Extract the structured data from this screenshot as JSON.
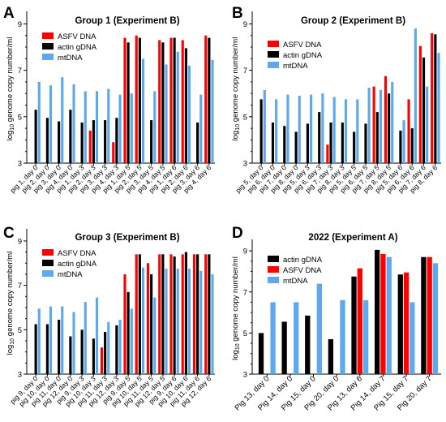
{
  "chart_data": [
    {
      "panel": "A",
      "title": "Group 1 (Experiment B)",
      "type": "bar",
      "ylabel": "log10 genome copy number/ml",
      "y_scale": "log10",
      "ylim_log10": [
        3,
        9.4
      ],
      "ytick_labels": [
        "3",
        "5",
        "7",
        "9"
      ],
      "legend": "top-left",
      "categories": [
        "pig 1, day 0",
        "pig 2, day 0",
        "pig 3, day 0",
        "pig 4, day 0",
        "pig 1, day 3",
        "pig 2, day 3",
        "pig 3, day 3",
        "pig 4, day 3",
        "pig 1, day 5",
        "pig 2, day 5",
        "pig 3, day 5",
        "pig 4, day 5",
        "pig 1, day 6",
        "pig 2, day 6",
        "pig 3, day 6",
        "pig 4, day 6"
      ],
      "series": [
        {
          "name": "ASFV DNA",
          "color": "#ff0000",
          "values": [
            null,
            null,
            null,
            null,
            null,
            4.4,
            null,
            3.9,
            8.4,
            8.5,
            null,
            8.3,
            8.4,
            8.3,
            null,
            8.5
          ]
        },
        {
          "name": "actin gDNA",
          "color": "#000000",
          "values": [
            5.3,
            4.95,
            4.8,
            5.3,
            4.75,
            4.85,
            4.85,
            4.95,
            8.2,
            8.4,
            4.85,
            8.2,
            8.4,
            7.95,
            4.75,
            8.4
          ]
        },
        {
          "name": "mtDNA",
          "color": "#5ea8ee",
          "values": [
            6.5,
            6.35,
            6.7,
            6.4,
            6.1,
            6.1,
            6.2,
            5.95,
            6.0,
            7.5,
            6.1,
            7.25,
            7.8,
            7.2,
            5.95,
            7.45
          ]
        }
      ]
    },
    {
      "panel": "B",
      "title": "Group 2 (Experiment B)",
      "type": "bar",
      "ylabel": "log10 genome copy number/ml",
      "y_scale": "log10",
      "ylim_log10": [
        3,
        9.4
      ],
      "ytick_labels": [
        "3",
        "5",
        "7",
        "9"
      ],
      "legend": "top-left",
      "categories": [
        "pig 5, day 0",
        "pig 6, day 0",
        "pig 7, day 0",
        "pig 8, day 0",
        "pig 5, day 3",
        "pig 6, day 3",
        "pig 7, day 3",
        "pig 8, day 3",
        "pig 5, day 5",
        "pig 6, day 5",
        "pig 7, day 5",
        "pig 8, day 5",
        "pig 5, day 6",
        "pig 6, day 6",
        "pig 7, day 6",
        "pig 8, day 6"
      ],
      "series": [
        {
          "name": "ASFV DNA",
          "color": "#ff0000",
          "values": [
            null,
            null,
            null,
            null,
            null,
            null,
            3.8,
            null,
            null,
            null,
            6.3,
            6.75,
            null,
            5.75,
            8.05,
            8.6
          ]
        },
        {
          "name": "actin gDNA",
          "color": "#000000",
          "values": [
            5.75,
            4.75,
            4.6,
            4.35,
            4.7,
            5.2,
            4.75,
            4.75,
            4.35,
            4.7,
            5.2,
            6.0,
            4.4,
            4.5,
            7.55,
            8.55
          ]
        },
        {
          "name": "mtDNA",
          "color": "#5ea8ee",
          "values": [
            6.15,
            5.75,
            5.95,
            5.9,
            5.95,
            6.0,
            5.85,
            5.75,
            5.75,
            6.25,
            6.15,
            6.5,
            4.85,
            8.8,
            6.3,
            7.75
          ]
        }
      ]
    },
    {
      "panel": "C",
      "title": "Group 3 (Experiment B)",
      "type": "bar",
      "ylabel": "log10 genome copy number/ml",
      "y_scale": "log10",
      "ylim_log10": [
        3,
        9.4
      ],
      "ytick_labels": [
        "3",
        "5",
        "7",
        "9"
      ],
      "legend": "top-left",
      "categories": [
        "pig 9, day 0",
        "pig 10, day 0",
        "pig 11, day 0",
        "pig 12, day 0",
        "pig 9, day 3",
        "pig 10, day 3",
        "pig 11, day 3",
        "pig 12, day 3",
        "pig 9, day 5",
        "pig 10, day 5",
        "pig 11, day 5",
        "pig 12, day 5",
        "pig 9, day 6",
        "pig 10, day 6",
        "pig 11, day 6",
        "pig 12, day 6"
      ],
      "series": [
        {
          "name": "ASFV DNA",
          "color": "#ff0000",
          "values": [
            null,
            null,
            null,
            null,
            null,
            null,
            4.2,
            null,
            7.5,
            8.4,
            8.0,
            8.4,
            8.4,
            8.4,
            8.4,
            8.4
          ]
        },
        {
          "name": "actin gDNA",
          "color": "#000000",
          "values": [
            5.25,
            5.25,
            5.45,
            4.7,
            5.0,
            4.6,
            4.9,
            5.2,
            6.7,
            8.4,
            7.5,
            8.4,
            8.3,
            8.5,
            8.4,
            8.4
          ]
        },
        {
          "name": "mtDNA",
          "color": "#5ea8ee",
          "values": [
            5.95,
            6.05,
            6.05,
            5.8,
            6.25,
            6.45,
            5.35,
            5.45,
            5.95,
            7.8,
            6.45,
            7.75,
            7.75,
            7.75,
            7.65,
            7.5
          ]
        }
      ]
    },
    {
      "panel": "D",
      "title": "2022 (Experiment A)",
      "type": "bar",
      "ylabel": "log10 genome copy number/ml",
      "y_scale": "log10",
      "ylim_log10": [
        3,
        9.4
      ],
      "ytick_labels": [
        "3",
        "5",
        "7",
        "9"
      ],
      "legend": "top-left",
      "categories": [
        "Pig 13, day 0",
        "Pig 14, day 0",
        "Pig 15, day 0",
        "Pig 20, day 0",
        "Pig 13, day 6",
        "Pig 14, day 7",
        "Pig 15, day 7",
        "Pig 20, day 7"
      ],
      "series": [
        {
          "name": "actin gDNA",
          "color": "#000000",
          "values": [
            5.0,
            5.55,
            5.85,
            4.7,
            7.75,
            9.05,
            7.85,
            8.7
          ]
        },
        {
          "name": "ASFV DNA",
          "color": "#ff0000",
          "values": [
            null,
            null,
            null,
            null,
            8.15,
            8.85,
            7.95,
            8.7
          ]
        },
        {
          "name": "mtDNA",
          "color": "#5ea8ee",
          "values": [
            6.5,
            6.5,
            7.4,
            6.6,
            6.6,
            8.7,
            6.5,
            8.4
          ]
        }
      ]
    }
  ]
}
